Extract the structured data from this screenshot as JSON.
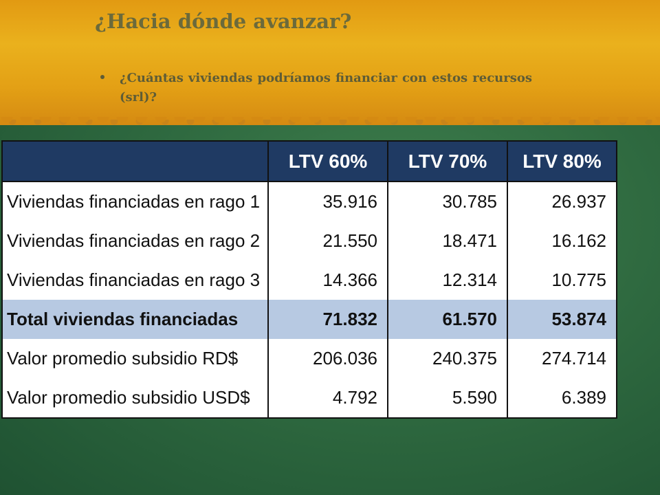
{
  "slide": {
    "title": "¿Hacia dónde avanzar?",
    "bullet": "¿Cuántas viviendas podríamos financiar con estos recursos (srl)?"
  },
  "table": {
    "headers": [
      "",
      "LTV 60%",
      "LTV 70%",
      "LTV 80%"
    ],
    "rows": [
      {
        "label": "Viviendas financiadas en rago 1",
        "values": [
          "35.916",
          "30.785",
          "26.937"
        ]
      },
      {
        "label": "Viviendas financiadas en rago 2",
        "values": [
          "21.550",
          "18.471",
          "16.162"
        ]
      },
      {
        "label": "Viviendas financiadas en rago 3",
        "values": [
          "14.366",
          "12.314",
          "10.775"
        ]
      },
      {
        "label": "Total viviendas financiadas",
        "values": [
          "71.832",
          "61.570",
          "53.874"
        ]
      },
      {
        "label": "Valor promedio subsidio RD$",
        "values": [
          "206.036",
          "240.375",
          "274.714"
        ]
      },
      {
        "label": "Valor promedio subsidio USD$",
        "values": [
          "4.792",
          "5.590",
          "6.389"
        ]
      }
    ]
  },
  "colors": {
    "header_bg": "#1f3a63",
    "total_row_bg": "#b7c9e2",
    "title_color": "#6b6a3b",
    "top_band": "#e3a015",
    "background": "#2f6a40"
  }
}
